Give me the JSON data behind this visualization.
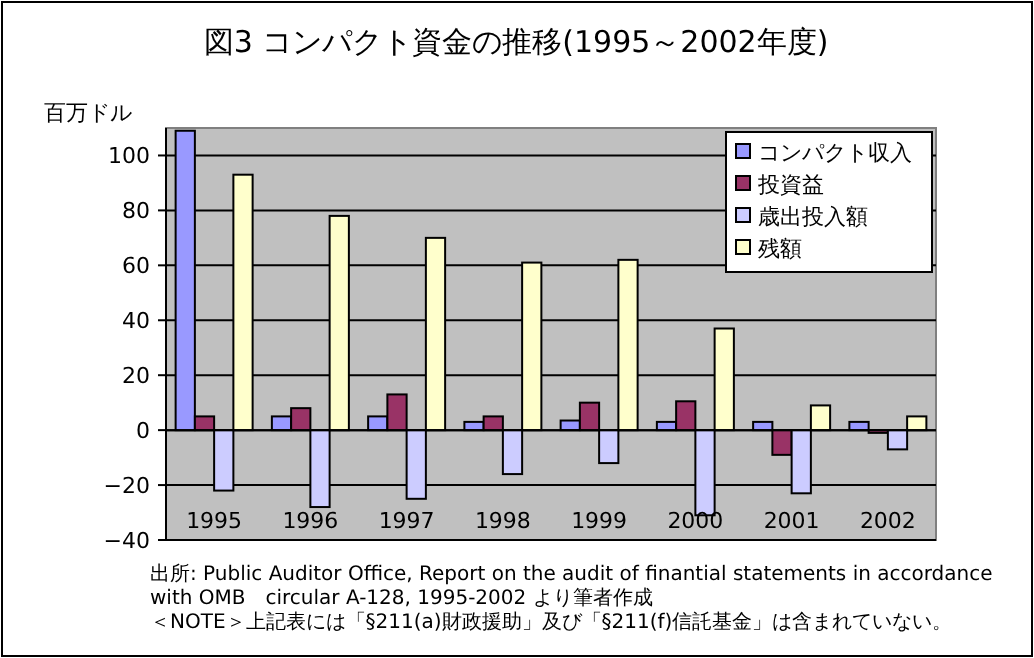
{
  "chart_data": {
    "type": "bar",
    "title": "図3 コンパクト資金の推移(1995～2002年度)",
    "ylabel": "百万ドル",
    "categories": [
      "1995",
      "1996",
      "1997",
      "1998",
      "1999",
      "2000",
      "2001",
      "2002"
    ],
    "series": [
      {
        "name": "コンパクト収入",
        "color": "#9999ff",
        "values": [
          109,
          5,
          5,
          3,
          3.5,
          3,
          3,
          3
        ]
      },
      {
        "name": "投資益",
        "color": "#993366",
        "values": [
          5,
          8,
          13,
          5,
          10,
          10.5,
          -9,
          -1
        ]
      },
      {
        "name": "歳出投入額",
        "color": "#ccccff",
        "values": [
          -22,
          -28,
          -25,
          -16,
          -12,
          -31,
          -23,
          -7
        ]
      },
      {
        "name": "残額",
        "color": "#ffffcc",
        "values": [
          93,
          78,
          70,
          61,
          62,
          37,
          9,
          5
        ]
      }
    ],
    "ylim": [
      -40,
      110
    ],
    "yticks": [
      -40,
      -20,
      0,
      20,
      40,
      60,
      80,
      100
    ],
    "grid": "y",
    "legend": "top right",
    "annotations": [
      "出所: Public Auditor Office, Report on the audit of finantial statements in accordance with OMB　circular A-128, 1995-2002 より筆者作成",
      "＜NOTE＞上記表には「§211(a)財政援助」及び「§211(f)信託基金」は含まれていない。"
    ]
  }
}
